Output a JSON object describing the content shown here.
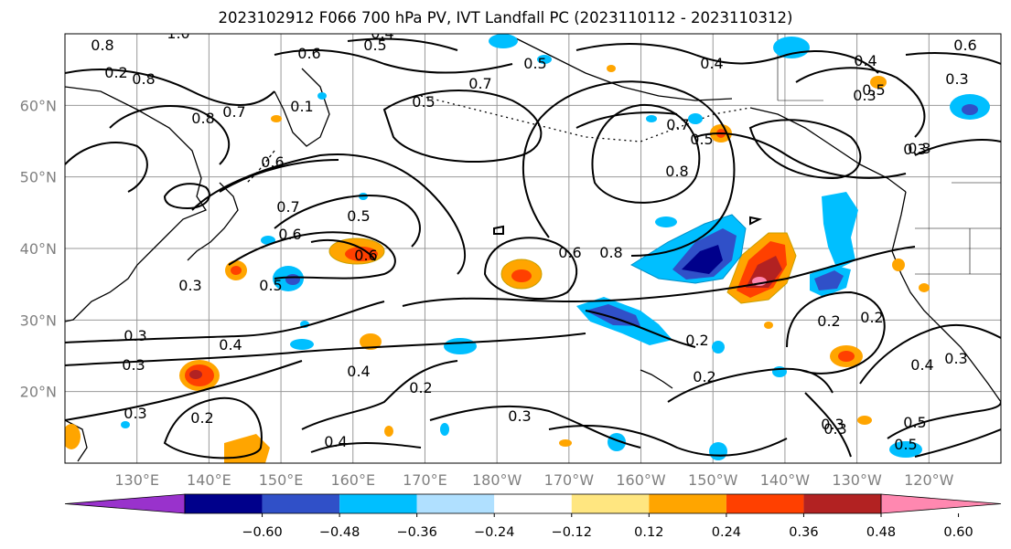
{
  "title": "2023102912 F066 700 hPa PV, IVT Landfall PC (2023110112 - 2023110312)",
  "map": {
    "lon_ticks": [
      "130°E",
      "140°E",
      "150°E",
      "160°E",
      "170°E",
      "180°W",
      "170°W",
      "160°W",
      "150°W",
      "140°W",
      "130°W",
      "120°W"
    ],
    "lat_ticks": [
      "60°N",
      "50°N",
      "40°N",
      "30°N",
      "20°N"
    ],
    "extent": {
      "lon_min": 120,
      "lon_max": 250,
      "lat_min": 10,
      "lat_max": 70
    },
    "contour_labels": [
      "1.0",
      "0.8",
      "0.8",
      "0.6",
      "0.5",
      "0.4",
      "0.7",
      "0.5",
      "0.6",
      "0.8",
      "0.7",
      "0.1",
      "0.8",
      "0.5",
      "0.7",
      "0.8",
      "0.6",
      "0.5",
      "0.4",
      "0.6",
      "0.4",
      "0.3",
      "0.3",
      "0.5",
      "0.3",
      "0.3",
      "0.6",
      "0.7",
      "0.5",
      "0.6",
      "0.5",
      "0.3",
      "0.2",
      "0.3",
      "0.4",
      "0.3",
      "0.4",
      "0.2",
      "0.3",
      "0.2",
      "0.2",
      "0.2",
      "0.3",
      "0.4",
      "0.3",
      "0.5",
      "0.4",
      "0.3",
      "0.5",
      "0.2",
      "0.2",
      "0.3"
    ]
  },
  "colorbar": {
    "colors": [
      "#9932cc",
      "#00008b",
      "#3050c8",
      "#00bfff",
      "#b0e0ff",
      "#ffffff",
      "#ffe680",
      "#ffa500",
      "#ff4000",
      "#b22222",
      "#ff88b0"
    ],
    "tick_labels": [
      "−0.60",
      "−0.48",
      "−0.36",
      "−0.24",
      "−0.12",
      "0.12",
      "0.24",
      "0.36",
      "0.48",
      "0.60"
    ]
  }
}
